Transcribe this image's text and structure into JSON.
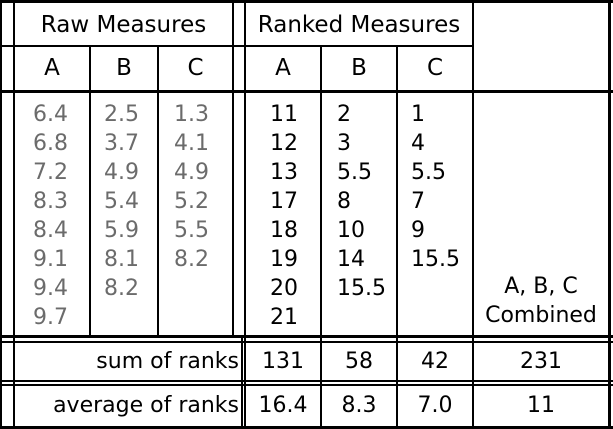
{
  "headers": {
    "raw": "Raw Measures",
    "ranked": "Ranked Measures",
    "cols_raw": [
      "A",
      "B",
      "C"
    ],
    "cols_ranked": [
      "A",
      "B",
      "C"
    ]
  },
  "raw": {
    "A": [
      "6.4",
      "6.8",
      "7.2",
      "8.3",
      "8.4",
      "9.1",
      "9.4",
      "9.7"
    ],
    "B": [
      "2.5",
      "3.7",
      "4.9",
      "5.4",
      "5.9",
      "8.1",
      "8.2"
    ],
    "C": [
      "1.3",
      "4.1",
      "4.9",
      "5.2",
      "5.5",
      "8.2"
    ]
  },
  "ranked": {
    "A": [
      "11",
      "12",
      "13",
      "17",
      "18",
      "19",
      "20",
      "21"
    ],
    "B": [
      "2",
      "3",
      "5.5",
      "8",
      "10",
      "14",
      "15.5"
    ],
    "C": [
      "1",
      "4",
      "5.5",
      "7",
      "9",
      "15.5"
    ]
  },
  "combined_label": [
    "A, B, C",
    "Combined"
  ],
  "sum": {
    "label": "sum of ranks",
    "A": "131",
    "B": "58",
    "C": "42",
    "combined": "231"
  },
  "avg": {
    "label": "average of ranks",
    "A": "16.4",
    "B": "8.3",
    "C": "7.0",
    "combined": "11"
  }
}
